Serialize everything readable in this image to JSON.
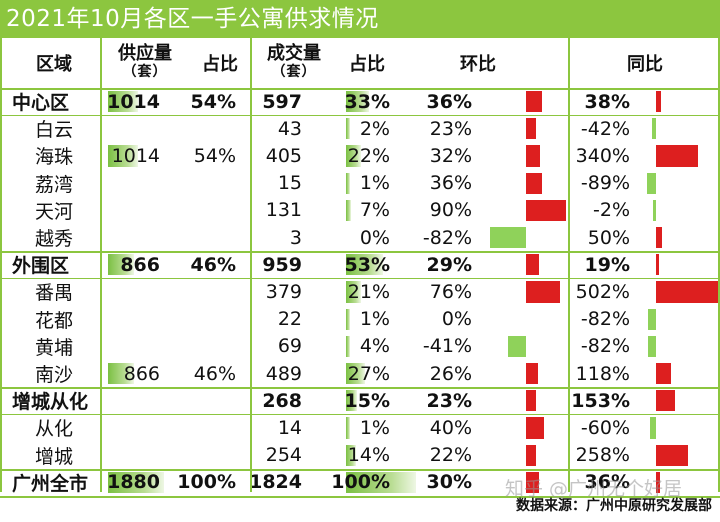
{
  "title": "2021年10月各区一手公寓供求情况",
  "headers": {
    "region": "区域",
    "supply_main": "供应量",
    "supply_sub": "（套）",
    "supply_share": "占比",
    "deal_main": "成交量",
    "deal_sub": "（套）",
    "deal_share": "占比",
    "mom": "环比",
    "yoy": "同比"
  },
  "rows": [
    {
      "name": "中心区",
      "supply": "1014",
      "supply_share": "54%",
      "deal": "597",
      "deal_share": "33%",
      "mom": "36%",
      "yoy": "38%",
      "bold": true,
      "supply_frac": 0.54,
      "deal_frac": 0.33,
      "mom_val": 36,
      "yoy_val": 38
    },
    {
      "name": "白云",
      "supply": "",
      "supply_share": "",
      "deal": "43",
      "deal_share": "2%",
      "mom": "23%",
      "yoy": "-42%",
      "bold": false,
      "supply_frac": 0,
      "deal_frac": 0.02,
      "mom_val": 23,
      "yoy_val": -42
    },
    {
      "name": "海珠",
      "supply": "1014",
      "supply_share": "54%",
      "deal": "405",
      "deal_share": "22%",
      "mom": "32%",
      "yoy": "340%",
      "bold": false,
      "supply_frac": 0.54,
      "deal_frac": 0.22,
      "mom_val": 32,
      "yoy_val": 340
    },
    {
      "name": "荔湾",
      "supply": "",
      "supply_share": "",
      "deal": "15",
      "deal_share": "1%",
      "mom": "36%",
      "yoy": "-89%",
      "bold": false,
      "supply_frac": 0,
      "deal_frac": 0.01,
      "mom_val": 36,
      "yoy_val": -89
    },
    {
      "name": "天河",
      "supply": "",
      "supply_share": "",
      "deal": "131",
      "deal_share": "7%",
      "mom": "90%",
      "yoy": "-2%",
      "bold": false,
      "supply_frac": 0,
      "deal_frac": 0.07,
      "mom_val": 90,
      "yoy_val": -2
    },
    {
      "name": "越秀",
      "supply": "",
      "supply_share": "",
      "deal": "3",
      "deal_share": "0%",
      "mom": "-82%",
      "yoy": "50%",
      "bold": false,
      "supply_frac": 0,
      "deal_frac": 0.0,
      "mom_val": -82,
      "yoy_val": 50
    },
    {
      "name": "外围区",
      "supply": "866",
      "supply_share": "46%",
      "deal": "959",
      "deal_share": "53%",
      "mom": "29%",
      "yoy": "19%",
      "bold": true,
      "supply_frac": 0.46,
      "deal_frac": 0.53,
      "mom_val": 29,
      "yoy_val": 19
    },
    {
      "name": "番禺",
      "supply": "",
      "supply_share": "",
      "deal": "379",
      "deal_share": "21%",
      "mom": "76%",
      "yoy": "502%",
      "bold": false,
      "supply_frac": 0,
      "deal_frac": 0.21,
      "mom_val": 76,
      "yoy_val": 502
    },
    {
      "name": "花都",
      "supply": "",
      "supply_share": "",
      "deal": "22",
      "deal_share": "1%",
      "mom": "0%",
      "yoy": "-82%",
      "bold": false,
      "supply_frac": 0,
      "deal_frac": 0.01,
      "mom_val": 0,
      "yoy_val": -82
    },
    {
      "name": "黄埔",
      "supply": "",
      "supply_share": "",
      "deal": "69",
      "deal_share": "4%",
      "mom": "-41%",
      "yoy": "-82%",
      "bold": false,
      "supply_frac": 0,
      "deal_frac": 0.04,
      "mom_val": -41,
      "yoy_val": -82
    },
    {
      "name": "南沙",
      "supply": "866",
      "supply_share": "46%",
      "deal": "489",
      "deal_share": "27%",
      "mom": "26%",
      "yoy": "118%",
      "bold": false,
      "supply_frac": 0.46,
      "deal_frac": 0.27,
      "mom_val": 26,
      "yoy_val": 118
    },
    {
      "name": "增城从化",
      "supply": "",
      "supply_share": "",
      "deal": "268",
      "deal_share": "15%",
      "mom": "23%",
      "yoy": "153%",
      "bold": true,
      "supply_frac": 0,
      "deal_frac": 0.15,
      "mom_val": 23,
      "yoy_val": 153
    },
    {
      "name": "从化",
      "supply": "",
      "supply_share": "",
      "deal": "14",
      "deal_share": "1%",
      "mom": "40%",
      "yoy": "-60%",
      "bold": false,
      "supply_frac": 0,
      "deal_frac": 0.01,
      "mom_val": 40,
      "yoy_val": -60
    },
    {
      "name": "增城",
      "supply": "",
      "supply_share": "",
      "deal": "254",
      "deal_share": "14%",
      "mom": "22%",
      "yoy": "258%",
      "bold": false,
      "supply_frac": 0,
      "deal_frac": 0.14,
      "mom_val": 22,
      "yoy_val": 258
    },
    {
      "name": "广州全市",
      "supply": "1880",
      "supply_share": "100%",
      "deal": "1824",
      "deal_share": "100%",
      "mom": "30%",
      "yoy": "36%",
      "bold": true,
      "supply_frac": 1.0,
      "deal_frac": 1.0,
      "mom_val": 30,
      "yoy_val": 36
    }
  ],
  "footer": {
    "source": "数据来源：广州中原研究发展部",
    "watermark": "知乎 @广州无个好居"
  },
  "colors": {
    "accent_green": "#8cc63f",
    "bar_positive": "#dd1f1f",
    "bar_negative": "#8fd25a"
  }
}
